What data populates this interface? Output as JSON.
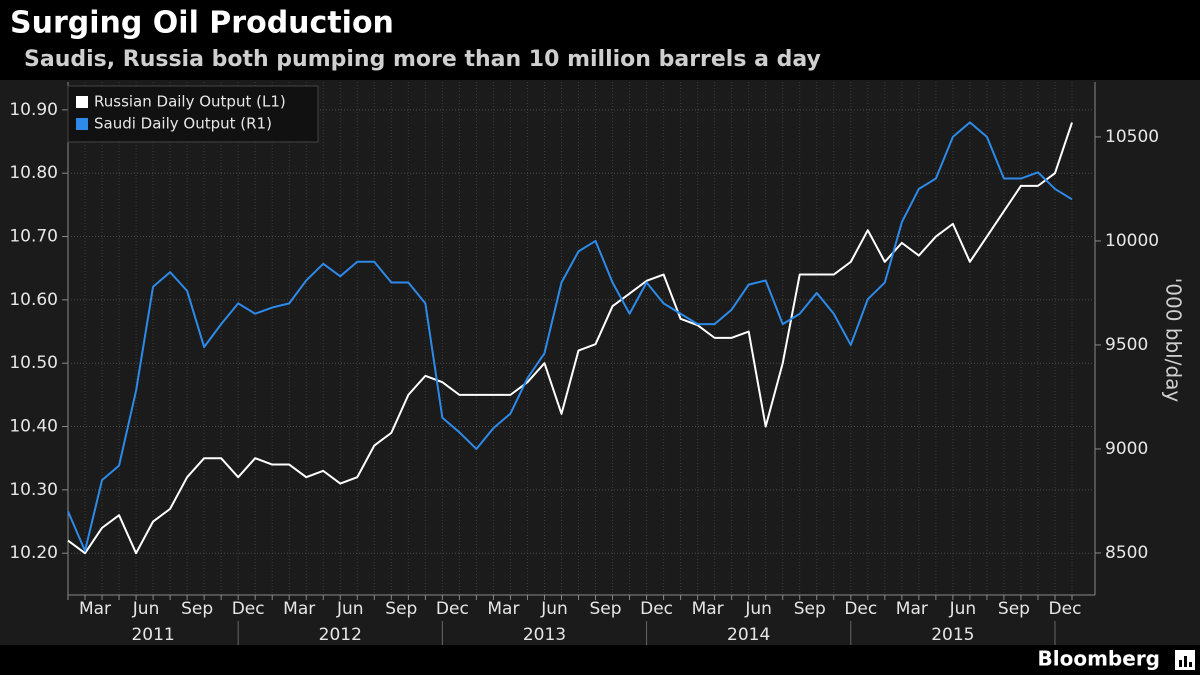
{
  "chart_data": {
    "type": "line",
    "title": "Surging Oil Production",
    "subtitle": "Saudis, Russia both pumping more than 10 million barrels a day",
    "y2_label": "'000 bbl/day",
    "source": "Bloomberg",
    "categories": [
      null,
      "Mar",
      null,
      null,
      "Jun",
      null,
      null,
      "Sep",
      null,
      null,
      "Dec",
      null,
      null,
      "Mar",
      null,
      null,
      "Jun",
      null,
      null,
      "Sep",
      null,
      null,
      "Dec",
      null,
      null,
      "Mar",
      null,
      null,
      "Jun",
      null,
      null,
      "Sep",
      null,
      null,
      "Dec",
      null,
      null,
      "Mar",
      null,
      null,
      "Jun",
      null,
      null,
      "Sep",
      null,
      null,
      "Dec",
      null,
      null,
      "Mar",
      null,
      null,
      "Jun",
      null,
      null,
      "Sep",
      null,
      null,
      "Dec",
      null
    ],
    "years": [
      "2011",
      "2012",
      "2013",
      "2014",
      "2015"
    ],
    "ylim": [
      10.134,
      10.944
    ],
    "yticks": [
      {
        "value": 10.2,
        "label": "10.20"
      },
      {
        "value": 10.3,
        "label": "10.30"
      },
      {
        "value": 10.4,
        "label": "10.40"
      },
      {
        "value": 10.5,
        "label": "10.50"
      },
      {
        "value": 10.6,
        "label": "10.60"
      },
      {
        "value": 10.7,
        "label": "10.70"
      },
      {
        "value": 10.8,
        "label": "10.80"
      },
      {
        "value": 10.9,
        "label": "10.90"
      }
    ],
    "y2lim": [
      8298,
      10764
    ],
    "y2ticks": [
      8500,
      9000,
      9500,
      10000,
      10500
    ],
    "grid": true,
    "legend": "top-left",
    "series": [
      {
        "name": "Russian Daily Output (L1)",
        "color": "#ffffff",
        "values": [
          10.22,
          10.2,
          10.24,
          10.26,
          10.2,
          10.25,
          10.27,
          10.32,
          10.35,
          10.35,
          10.32,
          10.35,
          10.34,
          10.34,
          10.32,
          10.33,
          10.31,
          10.32,
          10.37,
          10.39,
          10.45,
          10.48,
          10.47,
          10.45,
          10.45,
          10.45,
          10.45,
          10.47,
          10.5,
          10.42,
          10.52,
          10.53,
          10.59,
          10.61,
          10.63,
          10.64,
          10.57,
          10.56,
          10.54,
          10.54,
          10.55,
          10.4,
          10.5,
          10.64,
          10.64,
          10.64,
          10.66,
          10.71,
          10.66,
          10.69,
          10.67,
          10.7,
          10.72,
          10.66,
          10.7,
          10.74,
          10.78,
          10.78,
          10.8,
          10.88
        ]
      },
      {
        "name": "Saudi Daily Output (R1)",
        "color": "#2d8ae8",
        "axis": "y2",
        "values": [
          8700,
          8510,
          8850,
          8920,
          9280,
          9780,
          9850,
          9760,
          9490,
          9600,
          9700,
          9650,
          9680,
          9700,
          9810,
          9890,
          9830,
          9900,
          9900,
          9800,
          9800,
          9700,
          9150,
          9080,
          9000,
          9100,
          9170,
          9340,
          9460,
          9800,
          9950,
          10000,
          9800,
          9650,
          9800,
          9700,
          9650,
          9600,
          9600,
          9670,
          9790,
          9810,
          9600,
          9650,
          9750,
          9650,
          9500,
          9720,
          9800,
          10090,
          10250,
          10300,
          10500,
          10570,
          10500,
          10300,
          10300,
          10330,
          10250,
          10200
        ]
      }
    ]
  }
}
